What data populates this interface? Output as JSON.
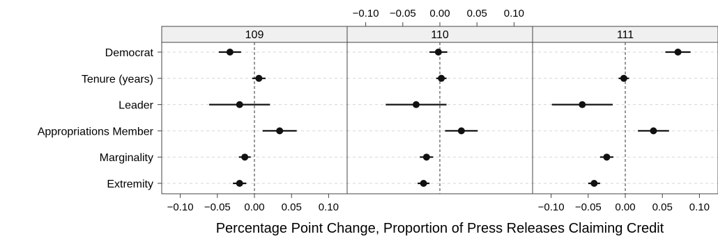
{
  "chart_data": {
    "type": "dot-whisker",
    "xlabel": "Percentage Point Change, Proportion of Press Releases Claiming Credit",
    "xlim": [
      -0.125,
      0.125
    ],
    "xticks": [
      -0.1,
      -0.05,
      0.0,
      0.05,
      0.1
    ],
    "xtick_labels": [
      "−0.10",
      "−0.05",
      "0.00",
      "0.05",
      "0.10"
    ],
    "reference_line": 0.0,
    "variables": [
      "Democrat",
      "Tenure (years)",
      "Leader",
      "Appropriations Member",
      "Marginality",
      "Extremity"
    ],
    "panels": [
      {
        "title": "109",
        "estimates": [
          -0.033,
          0.006,
          -0.02,
          0.034,
          -0.013,
          -0.02
        ],
        "lower": [
          -0.048,
          -0.003,
          -0.061,
          0.011,
          -0.021,
          -0.029
        ],
        "upper": [
          -0.018,
          0.015,
          0.021,
          0.057,
          -0.005,
          -0.011
        ]
      },
      {
        "title": "110",
        "estimates": [
          -0.002,
          0.002,
          -0.032,
          0.029,
          -0.018,
          -0.022
        ],
        "lower": [
          -0.014,
          -0.005,
          -0.073,
          0.007,
          -0.027,
          -0.03
        ],
        "upper": [
          0.01,
          0.009,
          0.009,
          0.051,
          -0.009,
          -0.014
        ]
      },
      {
        "title": "111",
        "estimates": [
          0.071,
          -0.002,
          -0.058,
          0.038,
          -0.025,
          -0.042
        ],
        "lower": [
          0.054,
          -0.009,
          -0.099,
          0.017,
          -0.034,
          -0.05
        ],
        "upper": [
          0.088,
          0.005,
          -0.017,
          0.059,
          -0.016,
          -0.034
        ]
      }
    ]
  }
}
